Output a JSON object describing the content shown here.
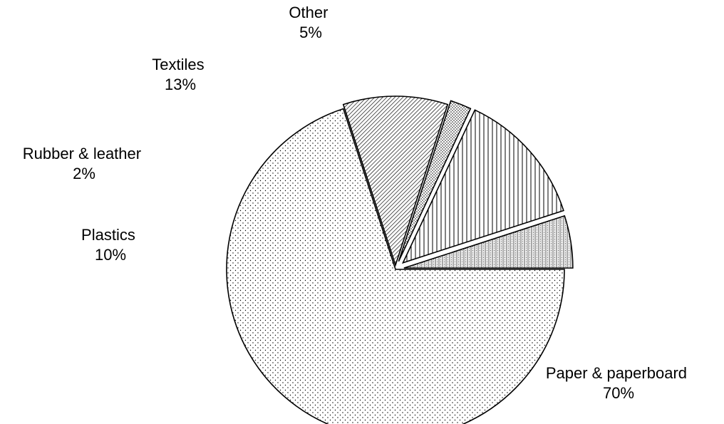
{
  "chart_data": {
    "type": "pie",
    "title": "",
    "slices": [
      {
        "name": "Paper & paperboard",
        "value": 70,
        "value_label": "70%",
        "pattern": "dots"
      },
      {
        "name": "Plastics",
        "value": 10,
        "value_label": "10%",
        "pattern": "diagonal-hatch"
      },
      {
        "name": "Rubber & leather",
        "value": 2,
        "value_label": "2%",
        "pattern": "dense-dots"
      },
      {
        "name": "Textiles",
        "value": 13,
        "value_label": "13%",
        "pattern": "vertical-lines"
      },
      {
        "name": "Other",
        "value": 5,
        "value_label": "5%",
        "pattern": "grid"
      }
    ],
    "exploded": true,
    "legend": "none",
    "colors": {
      "fill": "#ffffff",
      "ink": "#000000"
    }
  }
}
